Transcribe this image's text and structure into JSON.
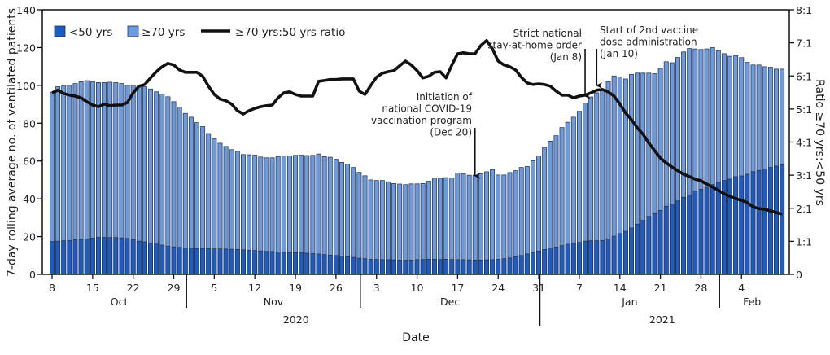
{
  "chart_data": {
    "type": "bar+line",
    "legend": {
      "placement": "top-left",
      "items": [
        "<50 yrs",
        "≥70 yrs",
        "≥70 yrs:50 yrs ratio"
      ]
    },
    "xlabel": "Date",
    "ylabel_left": "7-day rolling average no. of ventilated patients",
    "ylabel_right": "Ratio ≥70 yrs:<50 yrs",
    "ylim_left": [
      0,
      140
    ],
    "yticks_left": [
      "0",
      "20",
      "40",
      "60",
      "80",
      "100",
      "120",
      "140"
    ],
    "ylim_right": [
      0,
      8
    ],
    "yticks_right": [
      "0",
      "1:1",
      "2:1",
      "3:1",
      "4:1",
      "5:1",
      "6:1",
      "7:1",
      "8:1"
    ],
    "x_start": "2020-10-08",
    "x_end": "2021-02-11",
    "x_ticks": [
      {
        "label": "8",
        "date": "2020-10-08"
      },
      {
        "label": "15",
        "date": "2020-10-15"
      },
      {
        "label": "22",
        "date": "2020-10-22"
      },
      {
        "label": "29",
        "date": "2020-10-29"
      },
      {
        "label": "5",
        "date": "2020-11-05"
      },
      {
        "label": "12",
        "date": "2020-11-12"
      },
      {
        "label": "19",
        "date": "2020-11-19"
      },
      {
        "label": "26",
        "date": "2020-11-26"
      },
      {
        "label": "3",
        "date": "2020-12-03"
      },
      {
        "label": "10",
        "date": "2020-12-10"
      },
      {
        "label": "17",
        "date": "2020-12-17"
      },
      {
        "label": "24",
        "date": "2020-12-24"
      },
      {
        "label": "31",
        "date": "2020-12-31"
      },
      {
        "label": "7",
        "date": "2021-01-07"
      },
      {
        "label": "14",
        "date": "2021-01-14"
      },
      {
        "label": "21",
        "date": "2021-01-21"
      },
      {
        "label": "28",
        "date": "2021-01-28"
      },
      {
        "label": "4",
        "date": "2021-02-04"
      }
    ],
    "months": [
      {
        "label": "Oct",
        "start": "2020-10-01"
      },
      {
        "label": "Nov",
        "start": "2020-11-01"
      },
      {
        "label": "Dec",
        "start": "2020-12-01"
      },
      {
        "label": "Jan",
        "start": "2021-01-01"
      },
      {
        "label": "Feb",
        "start": "2021-02-01"
      }
    ],
    "years": [
      {
        "label": "2020"
      },
      {
        "label": "2021"
      }
    ],
    "series": [
      {
        "name": "<50 yrs",
        "axis": "left",
        "kind": "bar",
        "color": "#1a5cc8",
        "values": [
          17.4,
          17.6,
          17.8,
          17.9,
          18.3,
          18.6,
          18.8,
          19.2,
          19.6,
          19.6,
          19.5,
          19.5,
          19.3,
          19.0,
          18.5,
          17.6,
          17.2,
          16.5,
          16.0,
          15.5,
          15.0,
          14.6,
          14.3,
          14.0,
          13.8,
          13.7,
          13.7,
          13.6,
          13.5,
          13.5,
          13.4,
          13.3,
          13.2,
          13.0,
          12.8,
          12.6,
          12.4,
          12.2,
          12.1,
          11.9,
          11.7,
          11.6,
          11.5,
          11.4,
          11.2,
          11.0,
          10.8,
          10.5,
          10.2,
          10.0,
          9.7,
          9.4,
          9.0,
          8.6,
          8.3,
          8.0,
          7.9,
          7.8,
          7.8,
          7.7,
          7.6,
          7.5,
          7.6,
          7.8,
          7.9,
          8.0,
          8.0,
          7.9,
          8.0,
          7.9,
          7.8,
          7.8,
          7.7,
          7.6,
          7.6,
          7.7,
          7.8,
          8.0,
          8.3,
          8.7,
          9.3,
          10.0,
          10.8,
          11.6,
          12.4,
          13.2,
          13.9,
          14.5,
          15.2,
          15.9,
          16.4,
          16.9,
          17.6,
          17.8,
          17.8,
          17.9,
          18.8,
          20.2,
          21.6,
          22.8,
          24.6,
          26.6,
          28.6,
          30.7,
          32.1,
          33.9,
          36.1,
          37.2,
          38.9,
          40.8,
          42.1,
          44.1,
          45.1,
          46.1,
          47.5,
          48.7,
          49.7,
          50.4,
          51.7,
          52.1,
          53.0,
          54.4,
          55.0,
          55.8,
          56.6,
          57.3,
          58.0
        ]
      },
      {
        "name": "≥70 yrs",
        "axis": "left",
        "kind": "bar",
        "color": "#6a9be0",
        "values": [
          96.4,
          99.3,
          99.7,
          100,
          101,
          101.9,
          102.5,
          101.9,
          101.5,
          101.5,
          101.7,
          101.5,
          101,
          100,
          100,
          99.6,
          99.3,
          98.1,
          96.6,
          95.5,
          94,
          91.4,
          88.5,
          85.2,
          83.2,
          80.3,
          78.2,
          74.5,
          71.7,
          69.4,
          67.7,
          66,
          65.1,
          63.4,
          63.3,
          63.1,
          62.1,
          61.7,
          61.7,
          62.4,
          62.7,
          62.7,
          63,
          63.1,
          62.9,
          63,
          63.7,
          62.3,
          62,
          60.9,
          59.3,
          58.3,
          56.6,
          54,
          52.2,
          50,
          49.7,
          49.7,
          49,
          48.1,
          47.8,
          47.5,
          47.9,
          47.9,
          48.1,
          49.3,
          50.9,
          50.9,
          51.2,
          51.1,
          53.6,
          53.2,
          52.5,
          52.5,
          53.3,
          54.3,
          55.5,
          52.6,
          52.6,
          53.9,
          54.9,
          56.6,
          57.1,
          60.2,
          62.6,
          67.2,
          70.5,
          73.4,
          77.7,
          80.5,
          83.2,
          86.3,
          90.6,
          93.9,
          96.1,
          97.4,
          102,
          105,
          104.4,
          103.4,
          105.8,
          106.5,
          106.5,
          106.5,
          106.2,
          109,
          112.5,
          112,
          114.8,
          117.7,
          119.5,
          119.3,
          119,
          119.3,
          120,
          118.4,
          116.8,
          115.4,
          115.8,
          114.7,
          112.2,
          110.8,
          110.8,
          109.9,
          109.6,
          108.6,
          108.6
        ]
      },
      {
        "name": "≥70 yrs:50 yrs ratio",
        "axis": "right",
        "kind": "line",
        "color": "#111111",
        "values": [
          5.49,
          5.57,
          5.47,
          5.42,
          5.39,
          5.34,
          5.22,
          5.12,
          5.07,
          5.15,
          5.1,
          5.12,
          5.12,
          5.2,
          5.49,
          5.69,
          5.74,
          5.94,
          6.13,
          6.28,
          6.38,
          6.33,
          6.18,
          6.11,
          6.11,
          6.11,
          5.99,
          5.69,
          5.44,
          5.3,
          5.25,
          5.15,
          4.95,
          4.85,
          4.95,
          5.02,
          5.07,
          5.1,
          5.12,
          5.34,
          5.49,
          5.52,
          5.44,
          5.39,
          5.39,
          5.39,
          5.84,
          5.86,
          5.89,
          5.89,
          5.91,
          5.91,
          5.91,
          5.54,
          5.44,
          5.71,
          5.96,
          6.08,
          6.13,
          6.16,
          6.31,
          6.45,
          6.33,
          6.16,
          5.94,
          5.99,
          6.11,
          6.13,
          5.94,
          6.33,
          6.67,
          6.7,
          6.67,
          6.67,
          6.92,
          7.07,
          6.82,
          6.45,
          6.33,
          6.28,
          6.18,
          5.96,
          5.79,
          5.74,
          5.76,
          5.74,
          5.69,
          5.54,
          5.42,
          5.42,
          5.34,
          5.39,
          5.42,
          5.49,
          5.57,
          5.59,
          5.52,
          5.39,
          5.15,
          4.88,
          4.68,
          4.43,
          4.24,
          3.97,
          3.74,
          3.52,
          3.37,
          3.25,
          3.13,
          3.03,
          2.96,
          2.88,
          2.83,
          2.73,
          2.64,
          2.54,
          2.44,
          2.36,
          2.29,
          2.24,
          2.17,
          2.04,
          1.99,
          1.97,
          1.92,
          1.87,
          1.82
        ]
      }
    ],
    "annotations": [
      {
        "date": "2020-12-20",
        "lines": [
          "Initiation of",
          "national COVID-19",
          "vaccination program",
          "(Dec 20)"
        ]
      },
      {
        "date": "2021-01-08",
        "lines": [
          "Strict national",
          "stay-at-home order",
          "(Jan 8)"
        ]
      },
      {
        "date": "2021-01-10",
        "lines": [
          "Start of 2nd vaccine",
          "dose administration",
          "(Jan 10)"
        ]
      }
    ],
    "grid": false
  }
}
